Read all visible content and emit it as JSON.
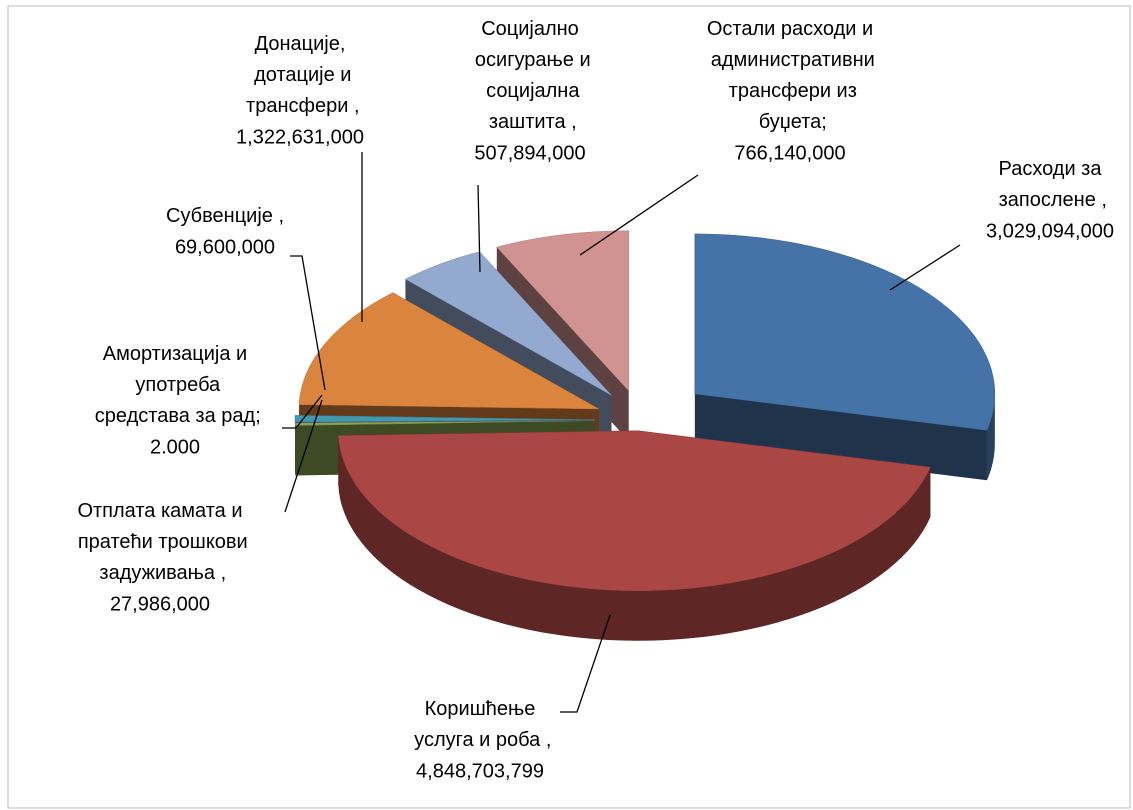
{
  "chart_data": {
    "type": "pie3d",
    "categories": [
      "Расходи за запослене ,",
      "Коришћење услуга и роба ,",
      "Отплата камата и пратећи трошкови задуживања ,",
      "Амортизација и употреба средстава за рад;",
      "Субвенције ,",
      "Донације, дотације и трансфери ,",
      "Социјално осигурање и социјална заштита ,",
      "Остали расходи и административни трансфери из буџета;"
    ],
    "values": [
      3029094000,
      4848703799,
      27986000,
      2000,
      69600000,
      1322631000,
      507894000,
      766140000
    ],
    "value_labels": [
      "3,029,094,000",
      "4,848,703,799",
      "27,986,000",
      "2.000",
      "69,600,000",
      "1,322,631,000",
      "507,894,000",
      "766,140,000"
    ],
    "colors": [
      "#4572a7",
      "#aa4643",
      "#89a54e",
      "#71588f",
      "#4198af",
      "#db843d",
      "#93a9cf",
      "#d19392"
    ]
  }
}
